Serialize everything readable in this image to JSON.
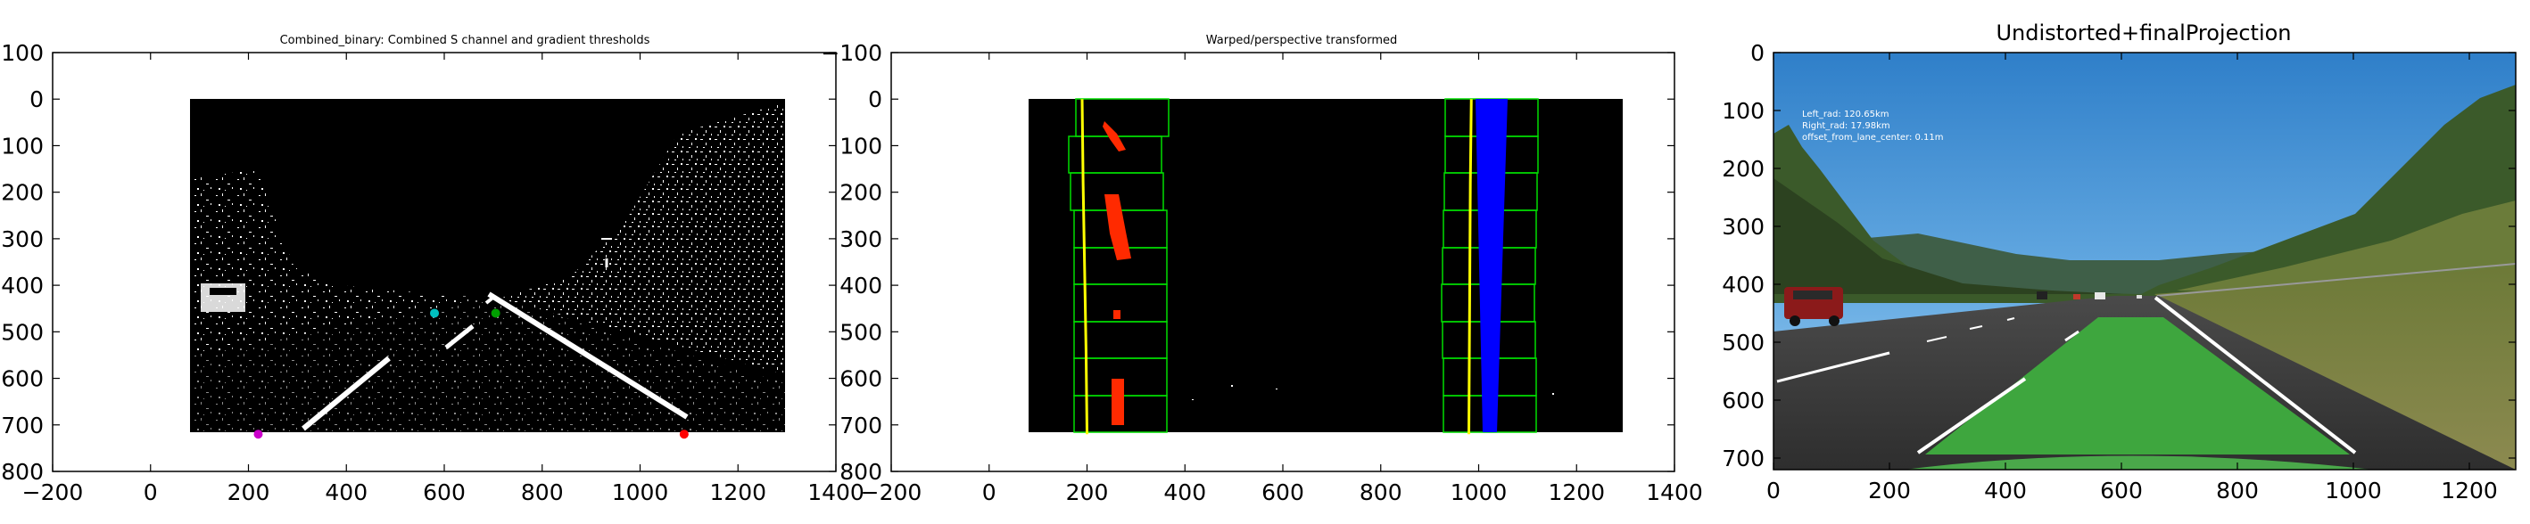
{
  "chart_data": [
    {
      "type": "scatter",
      "title": "Combined_binary: Combined S channel and gradient thresholds",
      "xlabel": "",
      "ylabel": "",
      "xlim": [
        -200,
        1400
      ],
      "ylim": [
        800,
        -100
      ],
      "x_ticks": [
        -200,
        0,
        200,
        400,
        600,
        800,
        1000,
        1200,
        1400
      ],
      "y_ticks": [
        -100,
        0,
        100,
        200,
        300,
        400,
        500,
        600,
        700,
        800
      ],
      "image_extent": {
        "x": [
          0,
          1280
        ],
        "y": [
          0,
          720
        ]
      },
      "series": [
        {
          "color": "#cc00cc",
          "x": [
            220
          ],
          "y": [
            720
          ]
        },
        {
          "color": "#ff0000",
          "x": [
            1090
          ],
          "y": [
            720
          ]
        },
        {
          "color": "#00c0c0",
          "x": [
            580
          ],
          "y": [
            460
          ]
        },
        {
          "color": "#00a000",
          "x": [
            705
          ],
          "y": [
            460
          ]
        }
      ],
      "grid": false
    },
    {
      "type": "line",
      "title": "Warped/perspective transformed",
      "xlabel": "",
      "ylabel": "",
      "xlim": [
        -200,
        1400
      ],
      "ylim": [
        800,
        -100
      ],
      "x_ticks": [
        -200,
        0,
        200,
        400,
        600,
        800,
        1000,
        1200,
        1400
      ],
      "y_ticks": [
        -100,
        0,
        100,
        200,
        300,
        400,
        500,
        600,
        700,
        800
      ],
      "image_extent": {
        "x": [
          0,
          1280
        ],
        "y": [
          0,
          720
        ]
      },
      "series": [
        {
          "color": "#ffff00",
          "x": [
            190,
            192,
            195,
            198,
            200
          ],
          "y": [
            0,
            180,
            360,
            540,
            720
          ]
        },
        {
          "color": "#ffff00",
          "x": [
            985,
            983,
            982,
            981,
            980
          ],
          "y": [
            0,
            180,
            360,
            540,
            720
          ]
        }
      ],
      "grid": false
    },
    {
      "type": "image",
      "title": "Undistorted+finalProjection",
      "xlabel": "",
      "ylabel": "",
      "xlim": [
        0,
        1280
      ],
      "ylim": [
        720,
        0
      ],
      "x_ticks": [
        0,
        200,
        400,
        600,
        800,
        1000,
        1200
      ],
      "y_ticks": [
        0,
        100,
        200,
        300,
        400,
        500,
        600,
        700
      ],
      "annotations": [
        "Left_rad: 120.65km",
        "Right_rad: 17.98km",
        "offset_from_lane_center: 0.11m"
      ],
      "grid": false
    }
  ]
}
